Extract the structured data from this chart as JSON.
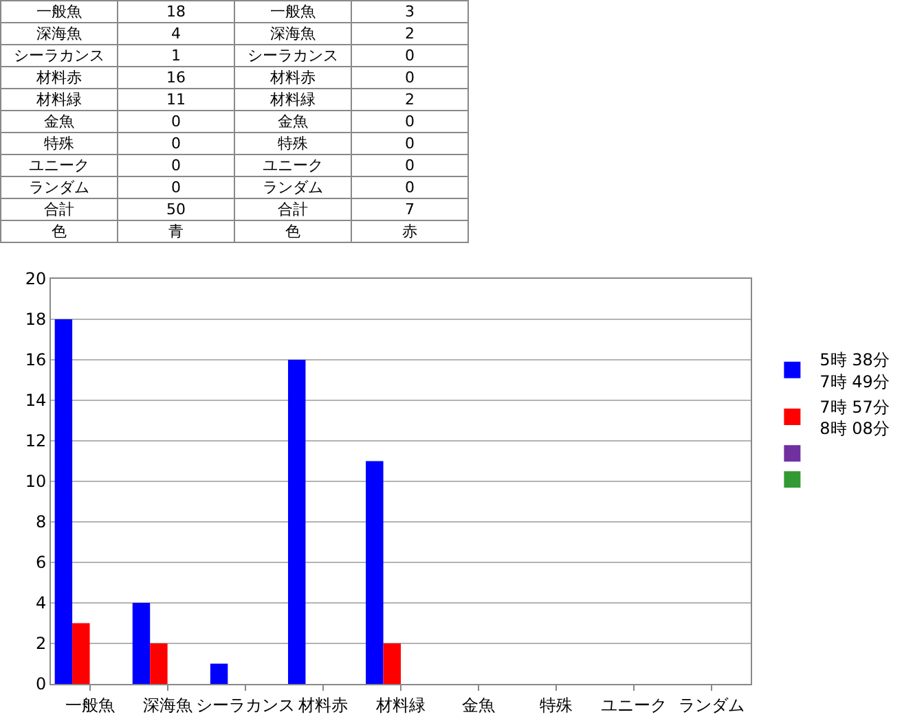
{
  "chart_data": {
    "type": "bar",
    "categories": [
      "一般魚",
      "深海魚",
      "シーラカンス",
      "材料赤",
      "材料緑",
      "金魚",
      "特殊",
      "ユニーク",
      "ランダム"
    ],
    "series": [
      {
        "name": "5時 38分\n7時 49分",
        "color": "#0000ff",
        "values": [
          18,
          4,
          1,
          16,
          11,
          0,
          0,
          0,
          0
        ]
      },
      {
        "name": "7時 57分\n8時 08分",
        "color": "#ff0000",
        "values": [
          3,
          2,
          0,
          0,
          2,
          0,
          0,
          0,
          0
        ]
      },
      {
        "color": "#7030a0",
        "values": [
          0,
          0,
          0,
          0,
          0,
          0,
          0,
          0,
          0
        ]
      },
      {
        "color": "#339933",
        "values": [
          0,
          0,
          0,
          0,
          0,
          0,
          0,
          0,
          0
        ]
      }
    ],
    "ylim": [
      0,
      20
    ],
    "yticks": [
      0,
      2,
      4,
      6,
      8,
      10,
      12,
      14,
      16,
      18,
      20
    ],
    "grid": "y",
    "legend": "right",
    "annotations": [
      "一般魚",
      "18",
      "一般魚",
      "3",
      "深海魚",
      "4",
      "深海魚",
      "2",
      "シーラカンス",
      "1",
      "シーラカンス",
      "0",
      "材料赤",
      "16",
      "材料赤",
      "0",
      "材料緑",
      "11",
      "材料緑",
      "2",
      "金魚",
      "0",
      "金魚",
      "0",
      "特殊",
      "0",
      "特殊",
      "0",
      "ユニーク",
      "0",
      "ユニーク",
      "0",
      "ランダム",
      "0",
      "ランダム",
      "0",
      "合計",
      "50",
      "合計",
      "7",
      "色",
      "青",
      "色",
      "赤"
    ]
  }
}
